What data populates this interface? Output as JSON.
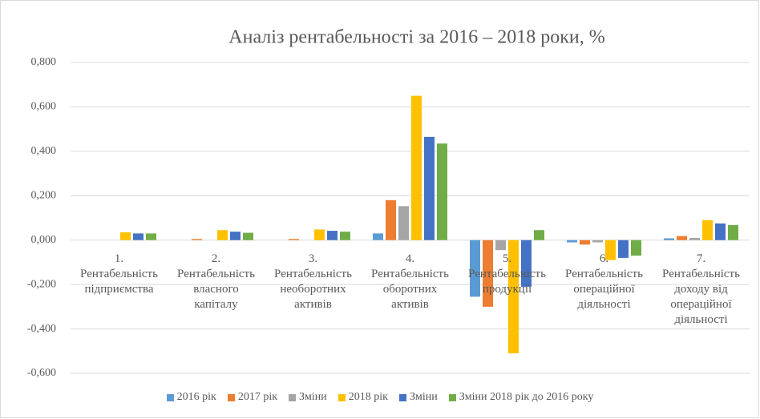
{
  "chart_data": {
    "type": "bar",
    "title": "Аналіз рентабельності за 2016 – 2018 роки, %",
    "categories": [
      "1.\nРентабельність\nпідприємства",
      "2.\nРентабельність\nвласного\nкапіталу",
      "3.\nРентабельність\nнеоборотних\nактивів",
      "4.\nРентабельність\nоборотних\nактивів",
      "5.\nРентабельність\nпродукції",
      "6.\nРентабельність\nопераційної\nдіяльності",
      "7.\nРентабельність\nдоходу від\nопераційної\nдіяльності"
    ],
    "series": [
      {
        "name": "2016 рік",
        "color": "#5b9bd5",
        "values": [
          0,
          0,
          0,
          0.03,
          -0.255,
          -0.01,
          0.008
        ]
      },
      {
        "name": "2017 рік",
        "color": "#ed7d31",
        "values": [
          0,
          0.005,
          0.005,
          0.18,
          -0.3,
          -0.02,
          0.018
        ]
      },
      {
        "name": "Зміни",
        "color": "#a5a5a5",
        "values": [
          0,
          0,
          0,
          0.153,
          -0.045,
          -0.01,
          0.01
        ]
      },
      {
        "name": "2018 рік",
        "color": "#ffc000",
        "values": [
          0.035,
          0.045,
          0.048,
          0.65,
          -0.51,
          -0.09,
          0.09
        ]
      },
      {
        "name": "Зміни",
        "color": "#4472c4",
        "values": [
          0.03,
          0.038,
          0.042,
          0.465,
          -0.21,
          -0.08,
          0.075
        ]
      },
      {
        "name": "Зміни 2018 рік до 2016 року",
        "color": "#70ad47",
        "values": [
          0.03,
          0.033,
          0.038,
          0.435,
          0.045,
          -0.07,
          0.068
        ]
      }
    ],
    "ylim": [
      -0.6,
      0.8
    ],
    "yticks": [
      {
        "value": -0.6,
        "label": "-0,600"
      },
      {
        "value": -0.4,
        "label": "-0,400"
      },
      {
        "value": -0.2,
        "label": "-0,200"
      },
      {
        "value": 0,
        "label": "0,000"
      },
      {
        "value": 0.2,
        "label": "0,200"
      },
      {
        "value": 0.4,
        "label": "0,400"
      },
      {
        "value": 0.6,
        "label": "0,600"
      },
      {
        "value": 0.8,
        "label": "0,800"
      }
    ],
    "grid": true
  }
}
